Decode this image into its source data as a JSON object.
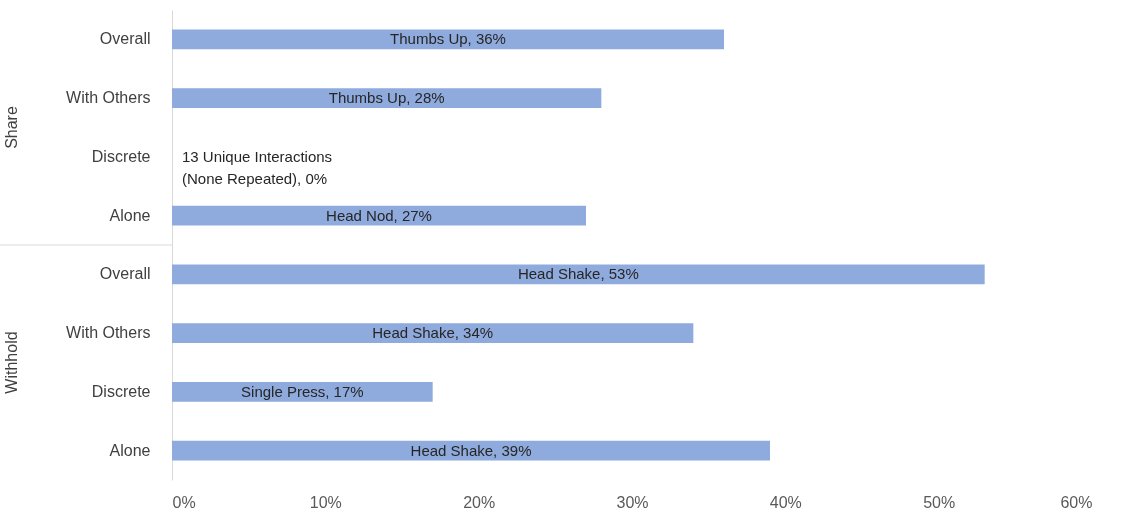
{
  "chart_data": {
    "type": "bar",
    "orientation": "horizontal",
    "categories": [
      "Overall",
      "With Others",
      "Discrete",
      "Alone",
      "Overall",
      "With Others",
      "Discrete",
      "Alone"
    ],
    "values": [
      36,
      28,
      0,
      27,
      53,
      34,
      17,
      39
    ],
    "value_labels": [
      "Thumbs Up, 36%",
      "Thumbs Up, 28%",
      "13 Unique Interactions (None Repeated), 0%",
      "Head Nod, 27%",
      "Head Shake, 53%",
      "Head Shake, 34%",
      "Single Press, 17%",
      "Head Shake, 39%"
    ],
    "color": "#8faadc",
    "xlim": [
      0,
      60
    ],
    "xticks": [
      {
        "value": 0,
        "label": "0%"
      },
      {
        "value": 10,
        "label": "10%"
      },
      {
        "value": 20,
        "label": "20%"
      },
      {
        "value": 30,
        "label": "30%"
      },
      {
        "value": 40,
        "label": "40%"
      },
      {
        "value": 50,
        "label": "50%"
      },
      {
        "value": 60,
        "label": "60%"
      }
    ],
    "annotations": [
      "Share",
      "Withhold"
    ],
    "grid": false
  }
}
